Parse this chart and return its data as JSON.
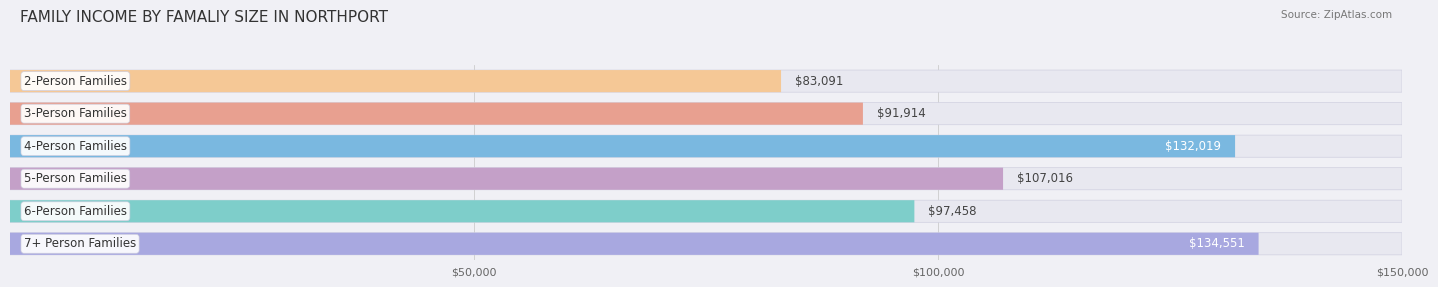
{
  "title": "FAMILY INCOME BY FAMALIY SIZE IN NORTHPORT",
  "source": "Source: ZipAtlas.com",
  "categories": [
    "2-Person Families",
    "3-Person Families",
    "4-Person Families",
    "5-Person Families",
    "6-Person Families",
    "7+ Person Families"
  ],
  "values": [
    83091,
    91914,
    132019,
    107016,
    97458,
    134551
  ],
  "bar_colors": [
    "#f5c896",
    "#e8a090",
    "#7ab8e0",
    "#c4a0c8",
    "#7ececa",
    "#a8a8e0"
  ],
  "label_colors": [
    "#555555",
    "#555555",
    "#ffffff",
    "#555555",
    "#555555",
    "#ffffff"
  ],
  "xlim": [
    0,
    150000
  ],
  "xticks": [
    50000,
    100000,
    150000
  ],
  "xtick_labels": [
    "$50,000",
    "$100,000",
    "$150,000"
  ],
  "bg_color": "#f0f0f5",
  "bar_bg_color": "#e8e8f0",
  "bar_border_color": "#d0d0e0",
  "title_fontsize": 11,
  "label_fontsize": 8.5,
  "value_fontsize": 8.5,
  "bar_height": 0.68,
  "bar_gap": 0.08
}
